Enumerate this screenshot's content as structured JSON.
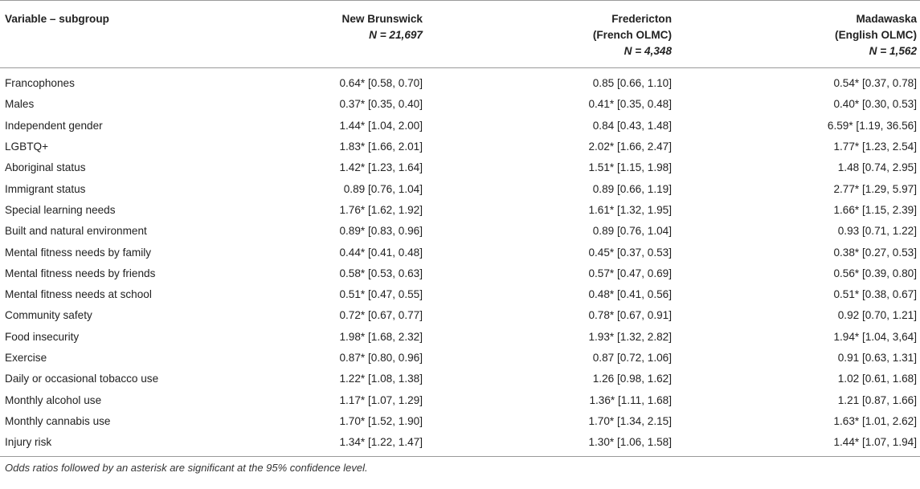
{
  "header": {
    "variable": "Variable – subgroup",
    "columns": [
      {
        "line1": "New Brunswick",
        "line2": "",
        "n": "N = 21,697"
      },
      {
        "line1": "Fredericton",
        "line2": "(French OLMC)",
        "n": "N = 4,348"
      },
      {
        "line1": "Madawaska",
        "line2": "(English OLMC)",
        "n": "N = 1,562"
      }
    ]
  },
  "rows": [
    {
      "label": "Francophones",
      "nb": "0.64* [0.58, 0.70]",
      "fr": "0.85 [0.66, 1.10]",
      "md": "0.54* [0.37, 0.78]"
    },
    {
      "label": "Males",
      "nb": "0.37* [0.35, 0.40]",
      "fr": "0.41* [0.35, 0.48]",
      "md": "0.40* [0.30, 0.53]"
    },
    {
      "label": "Independent gender",
      "nb": "1.44* [1.04, 2.00]",
      "fr": "0.84 [0.43, 1.48]",
      "md": "6.59* [1.19, 36.56]"
    },
    {
      "label": "LGBTQ+",
      "nb": "1.83* [1.66, 2.01]",
      "fr": "2.02* [1.66, 2.47]",
      "md": "1.77* [1.23, 2.54]"
    },
    {
      "label": "Aboriginal status",
      "nb": "1.42* [1.23, 1.64]",
      "fr": "1.51* [1.15, 1.98]",
      "md": "1.48 [0.74, 2.95]"
    },
    {
      "label": "Immigrant status",
      "nb": "0.89 [0.76, 1.04]",
      "fr": "0.89 [0.66, 1.19]",
      "md": "2.77* [1.29, 5.97]"
    },
    {
      "label": "Special learning needs",
      "nb": "1.76* [1.62, 1.92]",
      "fr": "1.61* [1.32, 1.95]",
      "md": "1.66* [1.15, 2.39]"
    },
    {
      "label": "Built and natural environment",
      "nb": "0.89* [0.83, 0.96]",
      "fr": "0.89 [0.76, 1.04]",
      "md": "0.93 [0.71, 1.22]"
    },
    {
      "label": "Mental fitness needs by family",
      "nb": "0.44* [0.41, 0.48]",
      "fr": "0.45* [0.37, 0.53]",
      "md": "0.38* [0.27, 0.53]"
    },
    {
      "label": "Mental fitness needs by friends",
      "nb": "0.58* [0.53, 0.63]",
      "fr": "0.57* [0.47, 0.69]",
      "md": "0.56* [0.39, 0.80]"
    },
    {
      "label": "Mental fitness needs at school",
      "nb": "0.51* [0.47, 0.55]",
      "fr": "0.48* [0.41, 0.56]",
      "md": "0.51* [0.38, 0.67]"
    },
    {
      "label": "Community safety",
      "nb": "0.72* [0.67, 0.77]",
      "fr": "0.78* [0.67, 0.91]",
      "md": "0.92 [0.70, 1.21]"
    },
    {
      "label": "Food insecurity",
      "nb": "1.98* [1.68, 2.32]",
      "fr": "1.93* [1.32, 2.82]",
      "md": "1.94* [1.04, 3,64]"
    },
    {
      "label": "Exercise",
      "nb": "0.87* [0.80, 0.96]",
      "fr": "0.87 [0.72, 1.06]",
      "md": "0.91 [0.63, 1.31]"
    },
    {
      "label": "Daily or occasional tobacco use",
      "nb": "1.22* [1.08, 1.38]",
      "fr": "1.26 [0.98, 1.62]",
      "md": "1.02 [0.61, 1.68]"
    },
    {
      "label": "Monthly alcohol use",
      "nb": "1.17* [1.07, 1.29]",
      "fr": "1.36* [1.11, 1.68]",
      "md": "1.21 [0.87, 1.66]"
    },
    {
      "label": "Monthly cannabis use",
      "nb": "1.70* [1.52, 1.90]",
      "fr": "1.70* [1.34, 2.15]",
      "md": "1.63* [1.01, 2.62]"
    },
    {
      "label": "Injury risk",
      "nb": "1.34* [1.22, 1.47]",
      "fr": "1.30* [1.06, 1.58]",
      "md": "1.44* [1.07, 1.94]"
    }
  ],
  "footnote": "Odds ratios followed by an asterisk are significant at the 95% confidence level."
}
